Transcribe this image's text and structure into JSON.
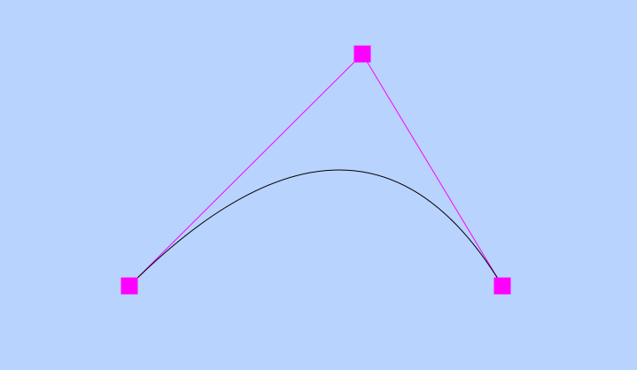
{
  "editor": {
    "type": "quadratic-bezier",
    "colors": {
      "background": "#b8d3fd",
      "control_polygon": "#ff00ff",
      "handle_fill": "#ff00ff",
      "curve": "#000000"
    },
    "icons": {
      "handle": "control-point-handle"
    }
  }
}
